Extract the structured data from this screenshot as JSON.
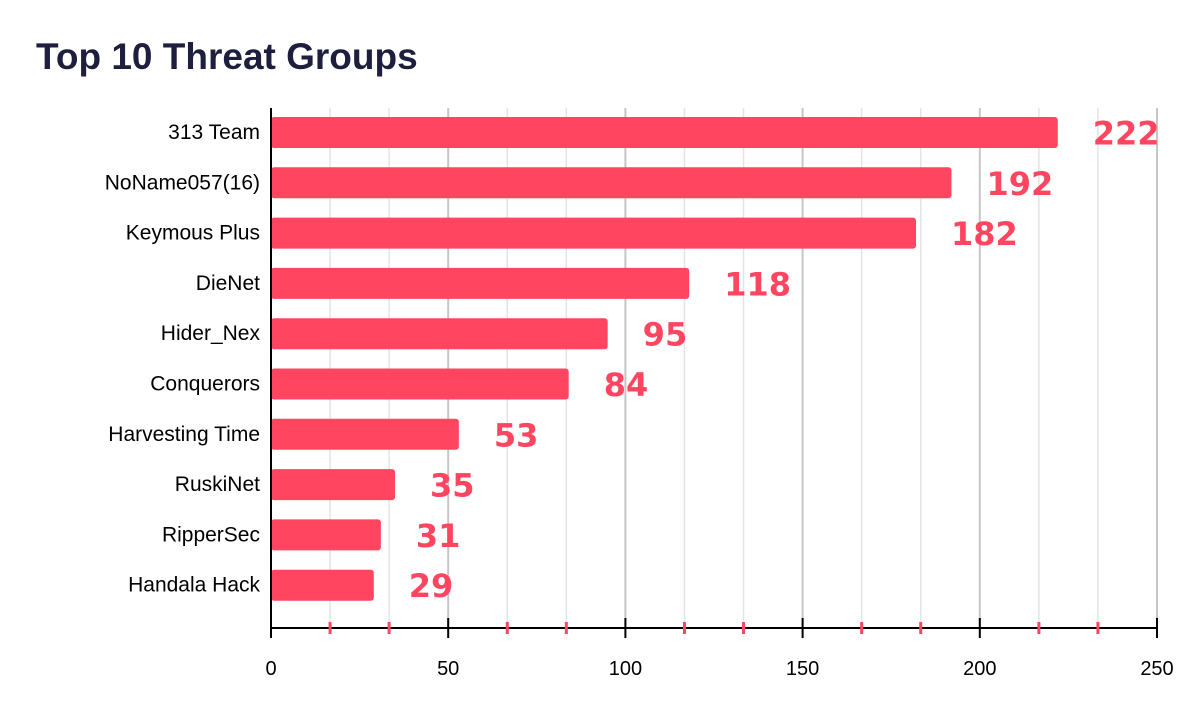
{
  "chart_data": {
    "type": "bar",
    "orientation": "horizontal",
    "title": "Top 10 Threat Groups",
    "xlabel": "",
    "ylabel": "",
    "categories": [
      "313 Team",
      "NoName057(16)",
      "Keymous Plus",
      "DieNet",
      "Hider_Nex",
      "Conquerors",
      "Harvesting Time",
      "RuskiNet",
      "RipperSec",
      "Handala Hack"
    ],
    "values": [
      222,
      192,
      182,
      118,
      95,
      84,
      53,
      35,
      31,
      29
    ],
    "xlim": [
      0,
      250
    ],
    "major_ticks": [
      0,
      50,
      100,
      150,
      200,
      250
    ],
    "minor_ticks": [
      16.67,
      33.33,
      66.67,
      83.33,
      116.67,
      133.33,
      166.67,
      183.33,
      216.67,
      233.33
    ],
    "grid": true,
    "legend": "none",
    "colors": {
      "bar": "#ff4560",
      "data_label": "#ff4560",
      "major_grid": "#c6c6c6",
      "minor_grid": "#e4e4e4",
      "axis": "#000000",
      "minor_tick": "#ff4560",
      "title": "#1e1e3f"
    }
  }
}
